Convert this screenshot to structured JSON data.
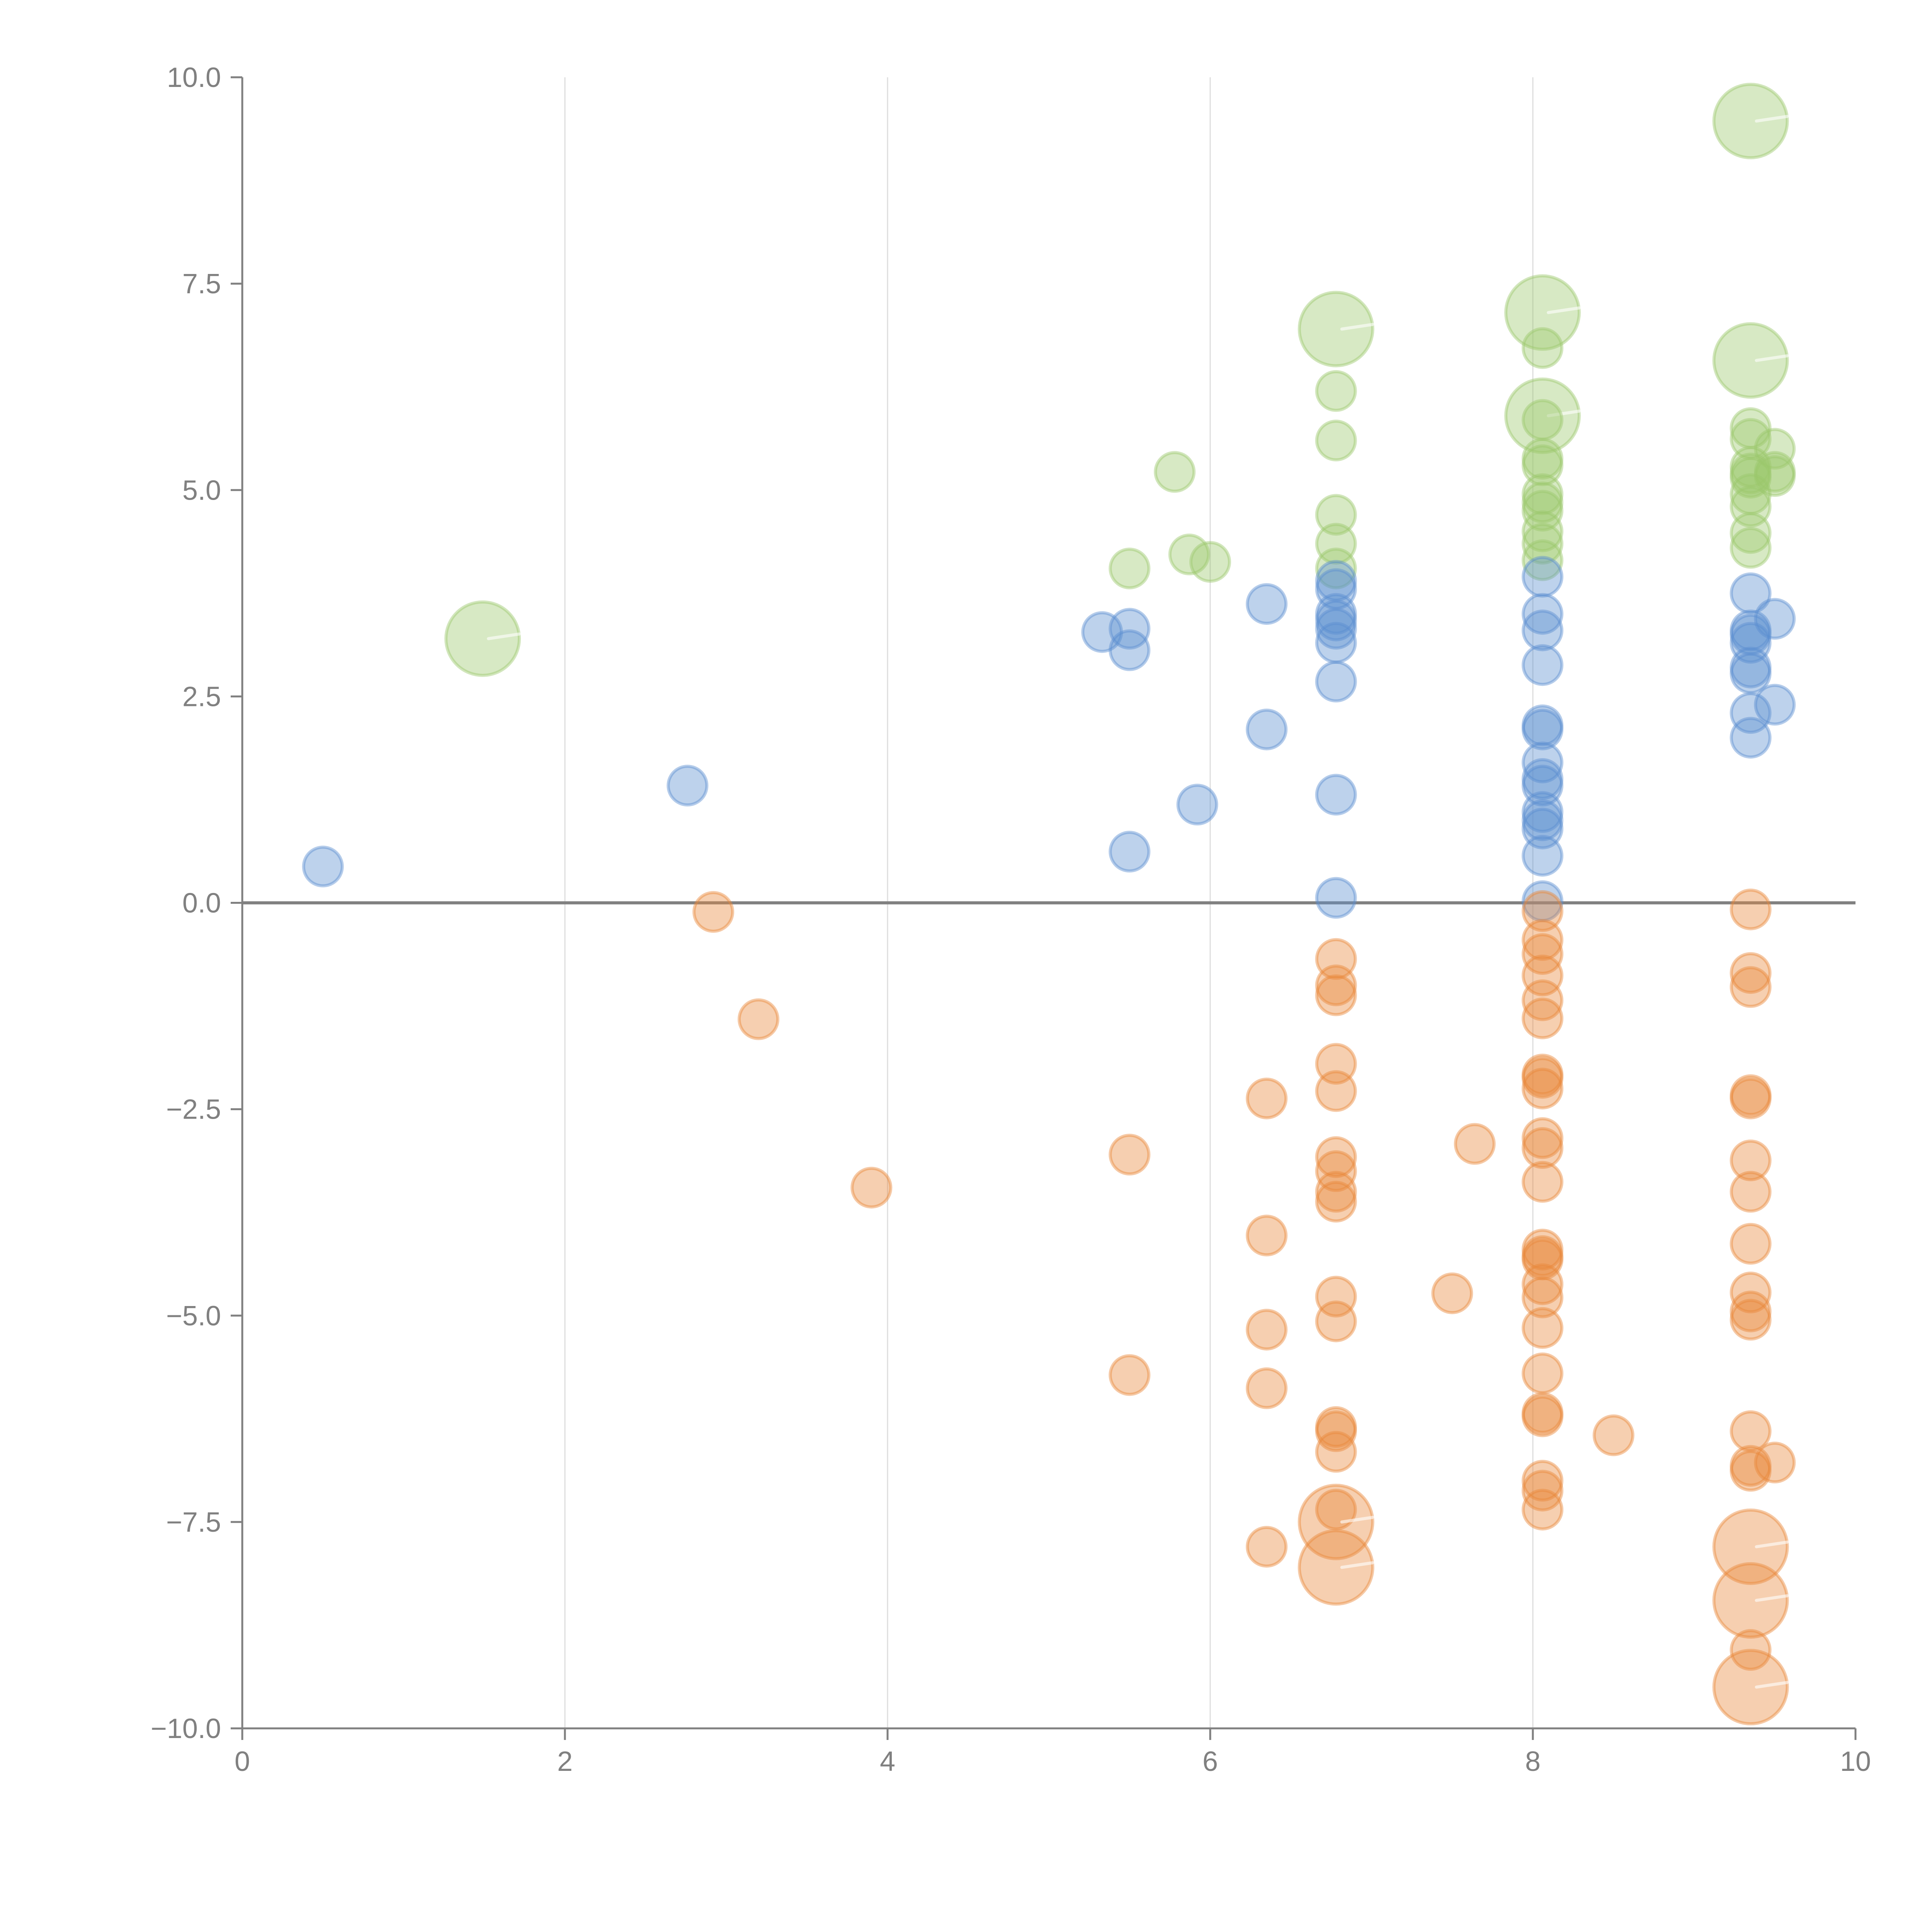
{
  "chart_data": {
    "type": "scatter",
    "title": "",
    "xlabel": "",
    "ylabel": "",
    "xlim": [
      0,
      10
    ],
    "ylim": [
      -10,
      10
    ],
    "grid": "vertical",
    "legend": "none",
    "zero_line": true,
    "x_ticks": [
      "0",
      "2",
      "4",
      "6",
      "8",
      "10"
    ],
    "y_ticks": [
      "−10.0",
      "−7.5",
      "−5.0",
      "−2.5",
      "0.0",
      "2.5",
      "5.0",
      "7.5",
      "10.0"
    ],
    "x_tick_values": [
      0,
      2,
      4,
      6,
      8,
      10
    ],
    "y_tick_values": [
      -10,
      -7.5,
      -5,
      -2.5,
      0,
      2.5,
      5,
      7.5,
      10
    ],
    "series": [
      {
        "name": "green",
        "color": "#9cc76c",
        "points": [
          {
            "x": 1.49,
            "y": 3.2,
            "size": 4
          },
          {
            "x": 5.5,
            "y": 4.05,
            "size": 1
          },
          {
            "x": 5.78,
            "y": 5.22,
            "size": 1
          },
          {
            "x": 5.87,
            "y": 4.22,
            "size": 1
          },
          {
            "x": 6.0,
            "y": 4.13,
            "size": 1
          },
          {
            "x": 6.78,
            "y": 6.95,
            "size": 4
          },
          {
            "x": 6.78,
            "y": 6.2,
            "size": 1
          },
          {
            "x": 6.78,
            "y": 5.6,
            "size": 1
          },
          {
            "x": 6.78,
            "y": 4.7,
            "size": 1
          },
          {
            "x": 6.78,
            "y": 4.35,
            "size": 1
          },
          {
            "x": 6.78,
            "y": 4.05,
            "size": 1
          },
          {
            "x": 8.06,
            "y": 7.15,
            "size": 4
          },
          {
            "x": 8.06,
            "y": 6.72,
            "size": 1
          },
          {
            "x": 8.06,
            "y": 5.9,
            "size": 4
          },
          {
            "x": 8.06,
            "y": 5.85,
            "size": 1
          },
          {
            "x": 8.06,
            "y": 5.38,
            "size": 1
          },
          {
            "x": 8.06,
            "y": 5.3,
            "size": 1
          },
          {
            "x": 8.06,
            "y": 4.95,
            "size": 1
          },
          {
            "x": 8.06,
            "y": 4.85,
            "size": 1
          },
          {
            "x": 8.06,
            "y": 4.75,
            "size": 1
          },
          {
            "x": 8.06,
            "y": 4.5,
            "size": 1
          },
          {
            "x": 8.06,
            "y": 4.35,
            "size": 1
          },
          {
            "x": 8.06,
            "y": 4.15,
            "size": 1
          },
          {
            "x": 9.35,
            "y": 9.47,
            "size": 4
          },
          {
            "x": 9.35,
            "y": 6.57,
            "size": 4
          },
          {
            "x": 9.35,
            "y": 5.75,
            "size": 1
          },
          {
            "x": 9.35,
            "y": 5.62,
            "size": 1
          },
          {
            "x": 9.35,
            "y": 5.28,
            "size": 1
          },
          {
            "x": 9.35,
            "y": 5.2,
            "size": 1
          },
          {
            "x": 9.35,
            "y": 5.15,
            "size": 1
          },
          {
            "x": 9.35,
            "y": 4.95,
            "size": 1
          },
          {
            "x": 9.35,
            "y": 4.8,
            "size": 1
          },
          {
            "x": 9.35,
            "y": 4.48,
            "size": 1
          },
          {
            "x": 9.35,
            "y": 4.3,
            "size": 1
          },
          {
            "x": 9.5,
            "y": 5.5,
            "size": 1
          },
          {
            "x": 9.5,
            "y": 5.22,
            "size": 1
          },
          {
            "x": 9.5,
            "y": 5.17,
            "size": 1
          }
        ]
      },
      {
        "name": "blue",
        "color": "#5b8fd0",
        "points": [
          {
            "x": 0.5,
            "y": 0.44,
            "size": 1
          },
          {
            "x": 2.76,
            "y": 1.42,
            "size": 1
          },
          {
            "x": 5.33,
            "y": 3.28,
            "size": 1
          },
          {
            "x": 5.5,
            "y": 3.32,
            "size": 1
          },
          {
            "x": 5.5,
            "y": 3.06,
            "size": 1
          },
          {
            "x": 5.5,
            "y": 0.62,
            "size": 1
          },
          {
            "x": 5.92,
            "y": 1.19,
            "size": 1
          },
          {
            "x": 6.35,
            "y": 3.62,
            "size": 1
          },
          {
            "x": 6.35,
            "y": 2.1,
            "size": 1
          },
          {
            "x": 6.78,
            "y": 3.9,
            "size": 1
          },
          {
            "x": 6.78,
            "y": 3.8,
            "size": 1
          },
          {
            "x": 6.78,
            "y": 3.5,
            "size": 1
          },
          {
            "x": 6.78,
            "y": 3.42,
            "size": 1
          },
          {
            "x": 6.78,
            "y": 3.32,
            "size": 1
          },
          {
            "x": 6.78,
            "y": 3.15,
            "size": 1
          },
          {
            "x": 6.78,
            "y": 2.68,
            "size": 1
          },
          {
            "x": 6.78,
            "y": 1.31,
            "size": 1
          },
          {
            "x": 6.78,
            "y": 0.06,
            "size": 1
          },
          {
            "x": 8.06,
            "y": 3.95,
            "size": 1
          },
          {
            "x": 8.06,
            "y": 3.5,
            "size": 1
          },
          {
            "x": 8.06,
            "y": 3.3,
            "size": 1
          },
          {
            "x": 8.06,
            "y": 2.88,
            "size": 1
          },
          {
            "x": 8.06,
            "y": 2.15,
            "size": 1
          },
          {
            "x": 8.06,
            "y": 2.1,
            "size": 1
          },
          {
            "x": 8.06,
            "y": 1.7,
            "size": 1
          },
          {
            "x": 8.06,
            "y": 1.5,
            "size": 1
          },
          {
            "x": 8.06,
            "y": 1.42,
            "size": 1
          },
          {
            "x": 8.06,
            "y": 1.1,
            "size": 1
          },
          {
            "x": 8.06,
            "y": 1.0,
            "size": 1
          },
          {
            "x": 8.06,
            "y": 0.9,
            "size": 1
          },
          {
            "x": 8.06,
            "y": 0.57,
            "size": 1
          },
          {
            "x": 8.06,
            "y": 0.02,
            "size": 1
          },
          {
            "x": 9.35,
            "y": 3.75,
            "size": 1
          },
          {
            "x": 9.35,
            "y": 3.3,
            "size": 1
          },
          {
            "x": 9.35,
            "y": 3.25,
            "size": 1
          },
          {
            "x": 9.35,
            "y": 3.15,
            "size": 1
          },
          {
            "x": 9.35,
            "y": 2.85,
            "size": 1
          },
          {
            "x": 9.35,
            "y": 2.78,
            "size": 1
          },
          {
            "x": 9.35,
            "y": 2.3,
            "size": 1
          },
          {
            "x": 9.35,
            "y": 2.0,
            "size": 1
          },
          {
            "x": 9.5,
            "y": 3.44,
            "size": 1
          },
          {
            "x": 9.5,
            "y": 2.4,
            "size": 1
          }
        ]
      },
      {
        "name": "orange",
        "color": "#e8883a",
        "points": [
          {
            "x": 2.92,
            "y": -0.11,
            "size": 1
          },
          {
            "x": 3.2,
            "y": -1.41,
            "size": 1
          },
          {
            "x": 3.9,
            "y": -3.45,
            "size": 1
          },
          {
            "x": 5.5,
            "y": -3.05,
            "size": 1
          },
          {
            "x": 5.5,
            "y": -5.72,
            "size": 1
          },
          {
            "x": 6.35,
            "y": -2.37,
            "size": 1
          },
          {
            "x": 6.35,
            "y": -4.03,
            "size": 1
          },
          {
            "x": 6.35,
            "y": -5.17,
            "size": 1
          },
          {
            "x": 6.35,
            "y": -5.88,
            "size": 1
          },
          {
            "x": 6.35,
            "y": -7.8,
            "size": 1
          },
          {
            "x": 6.78,
            "y": -0.68,
            "size": 1
          },
          {
            "x": 6.78,
            "y": -1.0,
            "size": 1
          },
          {
            "x": 6.78,
            "y": -1.12,
            "size": 1
          },
          {
            "x": 6.78,
            "y": -1.95,
            "size": 1
          },
          {
            "x": 6.78,
            "y": -2.28,
            "size": 1
          },
          {
            "x": 6.78,
            "y": -3.08,
            "size": 1
          },
          {
            "x": 6.78,
            "y": -3.25,
            "size": 1
          },
          {
            "x": 6.78,
            "y": -3.5,
            "size": 1
          },
          {
            "x": 6.78,
            "y": -3.62,
            "size": 1
          },
          {
            "x": 6.78,
            "y": -4.77,
            "size": 1
          },
          {
            "x": 6.78,
            "y": -5.07,
            "size": 1
          },
          {
            "x": 6.78,
            "y": -6.35,
            "size": 1
          },
          {
            "x": 6.78,
            "y": -6.4,
            "size": 1
          },
          {
            "x": 6.78,
            "y": -6.65,
            "size": 1
          },
          {
            "x": 6.78,
            "y": -7.35,
            "size": 1
          },
          {
            "x": 6.78,
            "y": -7.5,
            "size": 4
          },
          {
            "x": 6.78,
            "y": -8.05,
            "size": 4
          },
          {
            "x": 7.5,
            "y": -4.73,
            "size": 1
          },
          {
            "x": 7.64,
            "y": -2.92,
            "size": 1
          },
          {
            "x": 8.06,
            "y": -0.1,
            "size": 1
          },
          {
            "x": 8.06,
            "y": -0.45,
            "size": 1
          },
          {
            "x": 8.06,
            "y": -0.62,
            "size": 1
          },
          {
            "x": 8.06,
            "y": -0.88,
            "size": 1
          },
          {
            "x": 8.06,
            "y": -1.18,
            "size": 1
          },
          {
            "x": 8.06,
            "y": -1.4,
            "size": 1
          },
          {
            "x": 8.06,
            "y": -2.08,
            "size": 1
          },
          {
            "x": 8.06,
            "y": -2.12,
            "size": 1
          },
          {
            "x": 8.06,
            "y": -2.25,
            "size": 1
          },
          {
            "x": 8.06,
            "y": -2.85,
            "size": 1
          },
          {
            "x": 8.06,
            "y": -2.97,
            "size": 1
          },
          {
            "x": 8.06,
            "y": -3.38,
            "size": 1
          },
          {
            "x": 8.06,
            "y": -4.2,
            "size": 1
          },
          {
            "x": 8.06,
            "y": -4.28,
            "size": 1
          },
          {
            "x": 8.06,
            "y": -4.32,
            "size": 1
          },
          {
            "x": 8.06,
            "y": -4.62,
            "size": 1
          },
          {
            "x": 8.06,
            "y": -4.78,
            "size": 1
          },
          {
            "x": 8.06,
            "y": -5.15,
            "size": 1
          },
          {
            "x": 8.06,
            "y": -5.7,
            "size": 1
          },
          {
            "x": 8.06,
            "y": -6.18,
            "size": 1
          },
          {
            "x": 8.06,
            "y": -6.22,
            "size": 1
          },
          {
            "x": 8.06,
            "y": -7.0,
            "size": 1
          },
          {
            "x": 8.06,
            "y": -7.12,
            "size": 1
          },
          {
            "x": 8.06,
            "y": -7.35,
            "size": 1
          },
          {
            "x": 8.5,
            "y": -6.45,
            "size": 1
          },
          {
            "x": 9.35,
            "y": -0.08,
            "size": 1
          },
          {
            "x": 9.35,
            "y": -0.85,
            "size": 1
          },
          {
            "x": 9.35,
            "y": -1.02,
            "size": 1
          },
          {
            "x": 9.35,
            "y": -2.33,
            "size": 1
          },
          {
            "x": 9.35,
            "y": -2.37,
            "size": 1
          },
          {
            "x": 9.35,
            "y": -3.12,
            "size": 1
          },
          {
            "x": 9.35,
            "y": -3.5,
            "size": 1
          },
          {
            "x": 9.35,
            "y": -4.13,
            "size": 1
          },
          {
            "x": 9.35,
            "y": -4.72,
            "size": 1
          },
          {
            "x": 9.35,
            "y": -4.95,
            "size": 1
          },
          {
            "x": 9.35,
            "y": -5.05,
            "size": 1
          },
          {
            "x": 9.35,
            "y": -6.4,
            "size": 1
          },
          {
            "x": 9.35,
            "y": -6.82,
            "size": 1
          },
          {
            "x": 9.35,
            "y": -6.88,
            "size": 1
          },
          {
            "x": 9.5,
            "y": -6.78,
            "size": 1
          },
          {
            "x": 9.35,
            "y": -7.8,
            "size": 4
          },
          {
            "x": 9.35,
            "y": -8.45,
            "size": 4
          },
          {
            "x": 9.35,
            "y": -9.05,
            "size": 1
          },
          {
            "x": 9.35,
            "y": -9.5,
            "size": 4
          }
        ]
      }
    ]
  }
}
